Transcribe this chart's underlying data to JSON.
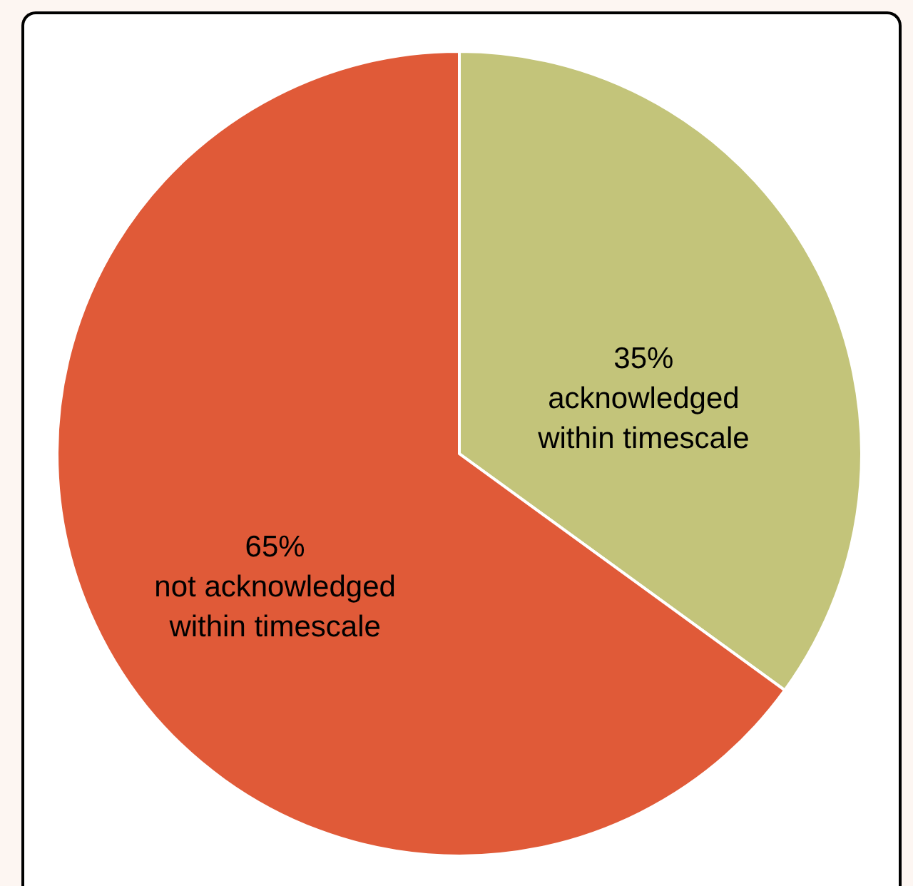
{
  "chart_data": {
    "type": "pie",
    "categories": [
      "acknowledged within timescale",
      "not acknowledged within timescale"
    ],
    "values": [
      35,
      65
    ],
    "colors": [
      "#c3c47a",
      "#e05a38"
    ],
    "value_labels": [
      "35%",
      "65%"
    ]
  }
}
